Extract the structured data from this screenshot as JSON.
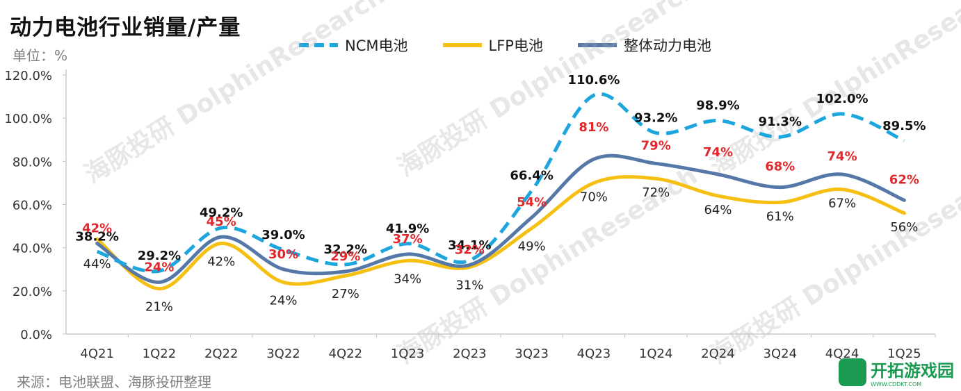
{
  "header": {
    "title": "动力电池行业销量/产量",
    "unit": "单位：%"
  },
  "footer": {
    "source": "来源：电池联盟、海豚投研整理"
  },
  "watermark": {
    "text_cn": "海豚投研",
    "text_en": "DolphinResearch"
  },
  "logo": {
    "name": "开拓游戏园",
    "url_text": "WWW.CDDKT.COM",
    "color": "#1b9a52"
  },
  "chart_data": {
    "type": "line",
    "categories": [
      "4Q21",
      "1Q22",
      "2Q22",
      "3Q22",
      "4Q22",
      "1Q23",
      "2Q23",
      "3Q23",
      "4Q23",
      "1Q24",
      "2Q24",
      "3Q24",
      "4Q24",
      "1Q25"
    ],
    "ylim": [
      0,
      120
    ],
    "yticks": [
      "0.0%",
      "20.0%",
      "40.0%",
      "60.0%",
      "80.0%",
      "100.0%",
      "120.0%"
    ],
    "grid": false,
    "legend_position": "top",
    "series": [
      {
        "name": "NCM电池",
        "color": "#1ca6dd",
        "style": "dashed",
        "values": [
          38.2,
          29.2,
          49.2,
          39.0,
          32.2,
          41.9,
          34.1,
          66.4,
          110.6,
          93.2,
          98.9,
          91.3,
          102.0,
          89.5
        ],
        "labels": [
          "38.2%",
          "29.2%",
          "49.2%",
          "39.0%",
          "32.2%",
          "41.9%",
          "34.1%",
          "66.4%",
          "110.6%",
          "93.2%",
          "98.9%",
          "91.3%",
          "102.0%",
          "89.5%"
        ],
        "label_color": "#111111"
      },
      {
        "name": "LFP电池",
        "color": "#f5c012",
        "style": "solid",
        "values": [
          44,
          21,
          42,
          24,
          27,
          34,
          31,
          49,
          70,
          72,
          64,
          61,
          67,
          56
        ],
        "labels": [
          "44%",
          "21%",
          "42%",
          "24%",
          "27%",
          "34%",
          "31%",
          "49%",
          "70%",
          "72%",
          "64%",
          "61%",
          "67%",
          "56%"
        ],
        "label_color": "#222222"
      },
      {
        "name": "整体动力电池",
        "color": "#5578a8",
        "style": "solid",
        "values": [
          42,
          24,
          45,
          30,
          29,
          37,
          32,
          54,
          81,
          79,
          74,
          68,
          74,
          62
        ],
        "labels": [
          "42%",
          "24%",
          "45%",
          "30%",
          "29%",
          "37%",
          "32%",
          "54%",
          "81%",
          "79%",
          "74%",
          "68%",
          "74%",
          "62%"
        ],
        "label_color": "#e0282d"
      }
    ]
  }
}
